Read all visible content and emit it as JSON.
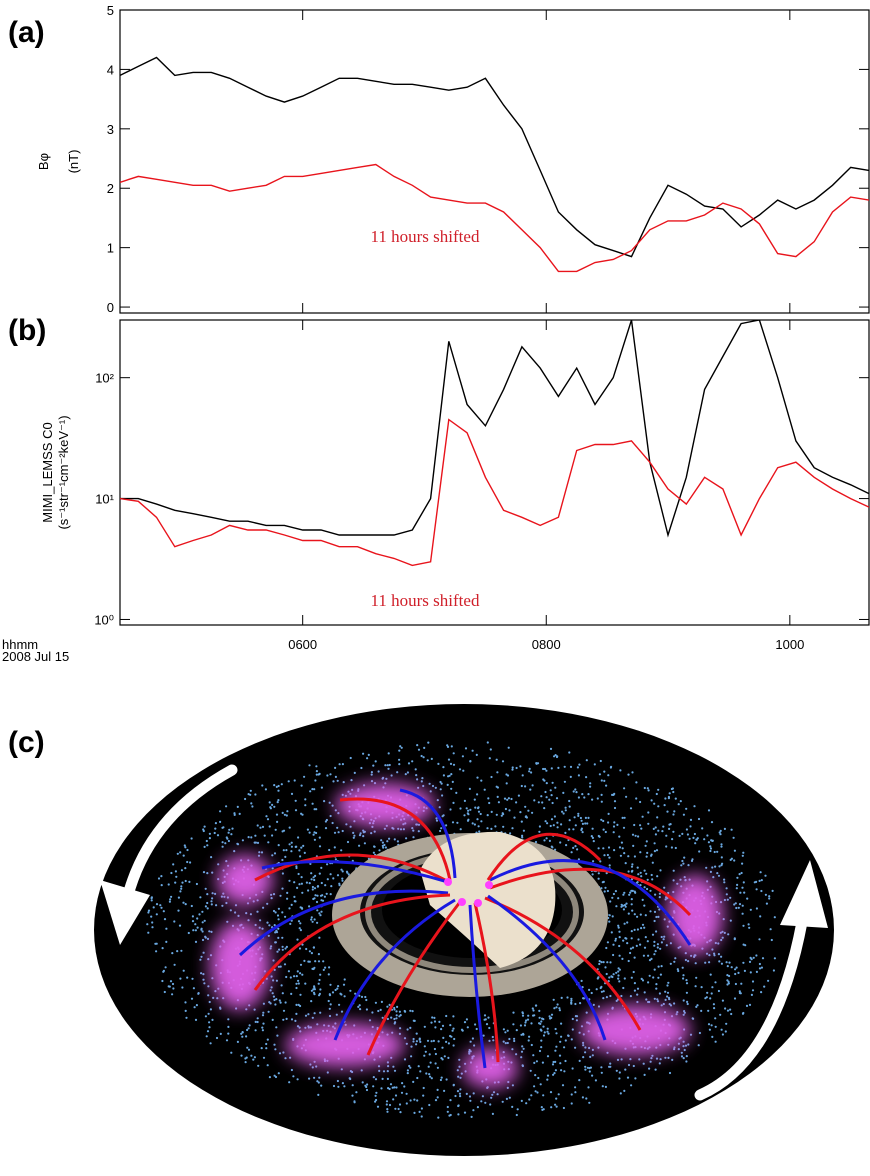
{
  "chart_data": [
    {
      "type": "line",
      "panel_label": "(a)",
      "ylabel": [
        "Bφ",
        "(nT)"
      ],
      "annotation": "11 hours shifted",
      "x": [
        4.5,
        4.65,
        4.8,
        4.95,
        5.1,
        5.25,
        5.4,
        5.55,
        5.7,
        5.85,
        6.0,
        6.15,
        6.3,
        6.45,
        6.6,
        6.75,
        6.9,
        7.05,
        7.2,
        7.35,
        7.5,
        7.65,
        7.8,
        7.95,
        8.1,
        8.25,
        8.4,
        8.55,
        8.7,
        8.85,
        9.0,
        9.15,
        9.3,
        9.45,
        9.6,
        9.75,
        9.9,
        10.05,
        10.2,
        10.35,
        10.5,
        10.65
      ],
      "series": [
        {
          "name": null,
          "color": "#000000",
          "values": [
            3.9,
            4.05,
            4.2,
            3.9,
            3.95,
            3.95,
            3.85,
            3.7,
            3.55,
            3.45,
            3.55,
            3.7,
            3.85,
            3.85,
            3.8,
            3.75,
            3.75,
            3.7,
            3.65,
            3.7,
            3.85,
            3.4,
            3.0,
            2.3,
            1.6,
            1.3,
            1.05,
            0.95,
            0.85,
            1.5,
            2.05,
            1.9,
            1.7,
            1.65,
            1.35,
            1.55,
            1.8,
            1.65,
            1.8,
            2.05,
            2.35,
            2.3
          ]
        },
        {
          "name": null,
          "color": "#e8141c",
          "values": [
            2.1,
            2.2,
            2.15,
            2.1,
            2.05,
            2.05,
            1.95,
            2.0,
            2.05,
            2.2,
            2.2,
            2.25,
            2.3,
            2.35,
            2.4,
            2.2,
            2.05,
            1.85,
            1.8,
            1.75,
            1.75,
            1.6,
            1.3,
            1.0,
            0.6,
            0.6,
            0.75,
            0.8,
            0.95,
            1.3,
            1.45,
            1.45,
            1.55,
            1.75,
            1.65,
            1.4,
            0.9,
            0.85,
            1.1,
            1.6,
            1.85,
            1.8
          ]
        }
      ],
      "xlim": [
        4.5,
        10.65
      ],
      "xticks": [
        6,
        8,
        10
      ],
      "ylim": [
        -0.1,
        5
      ],
      "yticks": [
        0,
        1,
        2,
        3,
        4,
        5
      ],
      "log": false
    },
    {
      "type": "line",
      "panel_label": "(b)",
      "ylabel": [
        "MIMI_LEMSS C0",
        "(s⁻¹str⁻¹cm⁻²keV⁻¹)"
      ],
      "annotation": "11 hours shifted",
      "x": [
        4.5,
        4.65,
        4.8,
        4.95,
        5.1,
        5.25,
        5.4,
        5.55,
        5.7,
        5.85,
        6.0,
        6.15,
        6.3,
        6.45,
        6.6,
        6.75,
        6.9,
        7.05,
        7.2,
        7.35,
        7.5,
        7.65,
        7.8,
        7.95,
        8.1,
        8.25,
        8.4,
        8.55,
        8.7,
        8.85,
        9.0,
        9.15,
        9.3,
        9.45,
        9.6,
        9.75,
        9.9,
        10.05,
        10.2,
        10.35,
        10.5,
        10.65
      ],
      "series": [
        {
          "name": null,
          "color": "#000000",
          "values": [
            10,
            10,
            9,
            8,
            7.5,
            7,
            6.5,
            6.5,
            6,
            6,
            5.5,
            5.5,
            5,
            5,
            5,
            5,
            5.5,
            10,
            200,
            60,
            40,
            80,
            180,
            120,
            70,
            120,
            60,
            100,
            300,
            20,
            5,
            15,
            80,
            150,
            280,
            300,
            100,
            30,
            18,
            15,
            13,
            11
          ]
        },
        {
          "name": null,
          "color": "#e8141c",
          "values": [
            10,
            9.5,
            7,
            4,
            4.5,
            5,
            6,
            5.5,
            5.5,
            5,
            4.5,
            4.5,
            4,
            4,
            3.5,
            3.2,
            2.8,
            3,
            45,
            35,
            15,
            8,
            7,
            6,
            7,
            25,
            28,
            28,
            30,
            20,
            12,
            9,
            15,
            12,
            5,
            10,
            18,
            20,
            15,
            12,
            10,
            8.5
          ]
        }
      ],
      "xlim": [
        4.5,
        10.65
      ],
      "xticks": [
        {
          "value": 6,
          "label": "0600"
        },
        {
          "value": 8,
          "label": "0800"
        },
        {
          "value": 10,
          "label": "1000"
        }
      ],
      "xlabel": [
        "hhmm",
        "2008 Jul 15"
      ],
      "ylim": [
        0.9,
        300
      ],
      "log": true,
      "yticks": [
        {
          "value": 1,
          "label": "10⁰"
        },
        {
          "value": 10,
          "label": "10¹"
        },
        {
          "value": 100,
          "label": "10²"
        }
      ]
    }
  ],
  "illustration": {
    "panel_label": "(c)"
  }
}
